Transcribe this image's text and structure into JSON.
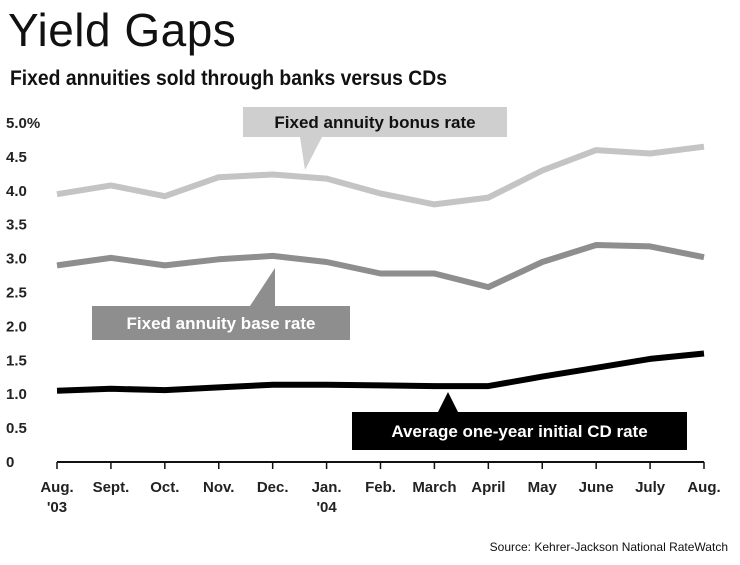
{
  "header": {
    "title": "Yield Gaps",
    "subtitle": "Fixed annuities sold through banks versus CDs"
  },
  "source": "Source: Kehrer-Jackson National RateWatch",
  "colors": {
    "bonus": "#c4c4c4",
    "base": "#8e8e8e",
    "cd": "#000000",
    "bonus_label_bg": "#cfcfcf",
    "base_label_bg": "#8e8e8e",
    "cd_label_bg": "#000000"
  },
  "chart_data": {
    "type": "line",
    "title": "Yield Gaps",
    "subtitle": "Fixed annuities sold through banks versus CDs",
    "categories": [
      "Aug. '03",
      "Sept.",
      "Oct.",
      "Nov.",
      "Dec.",
      "Jan. '04",
      "Feb.",
      "March",
      "April",
      "May",
      "June",
      "July",
      "Aug."
    ],
    "x_tick_labels": [
      [
        "Aug.",
        "'03"
      ],
      [
        "Sept."
      ],
      [
        "Oct."
      ],
      [
        "Nov."
      ],
      [
        "Dec."
      ],
      [
        "Jan.",
        "'04"
      ],
      [
        "Feb."
      ],
      [
        "March"
      ],
      [
        "April"
      ],
      [
        "May"
      ],
      [
        "June"
      ],
      [
        "July"
      ],
      [
        "Aug."
      ]
    ],
    "y_tick_labels": [
      "5.0%",
      "4.5",
      "4.0",
      "3.5",
      "3.0",
      "2.5",
      "2.0",
      "1.5",
      "1.0",
      "0.5",
      "0"
    ],
    "ylim": [
      0,
      5.0
    ],
    "xlabel": "",
    "ylabel": "",
    "grid": false,
    "series": [
      {
        "name": "Fixed annuity bonus rate",
        "key": "bonus",
        "values": [
          3.95,
          4.08,
          3.92,
          4.2,
          4.24,
          4.18,
          3.96,
          3.8,
          3.9,
          4.3,
          4.6,
          4.55,
          4.65
        ]
      },
      {
        "name": "Fixed annuity base rate",
        "key": "base",
        "values": [
          2.9,
          3.01,
          2.9,
          2.99,
          3.04,
          2.95,
          2.78,
          2.78,
          2.58,
          2.95,
          3.2,
          3.18,
          3.02
        ]
      },
      {
        "name": "Average one-year initial CD rate",
        "key": "cd",
        "values": [
          1.05,
          1.08,
          1.06,
          1.1,
          1.14,
          1.14,
          1.13,
          1.12,
          1.12,
          1.26,
          1.39,
          1.52,
          1.6
        ]
      }
    ]
  }
}
